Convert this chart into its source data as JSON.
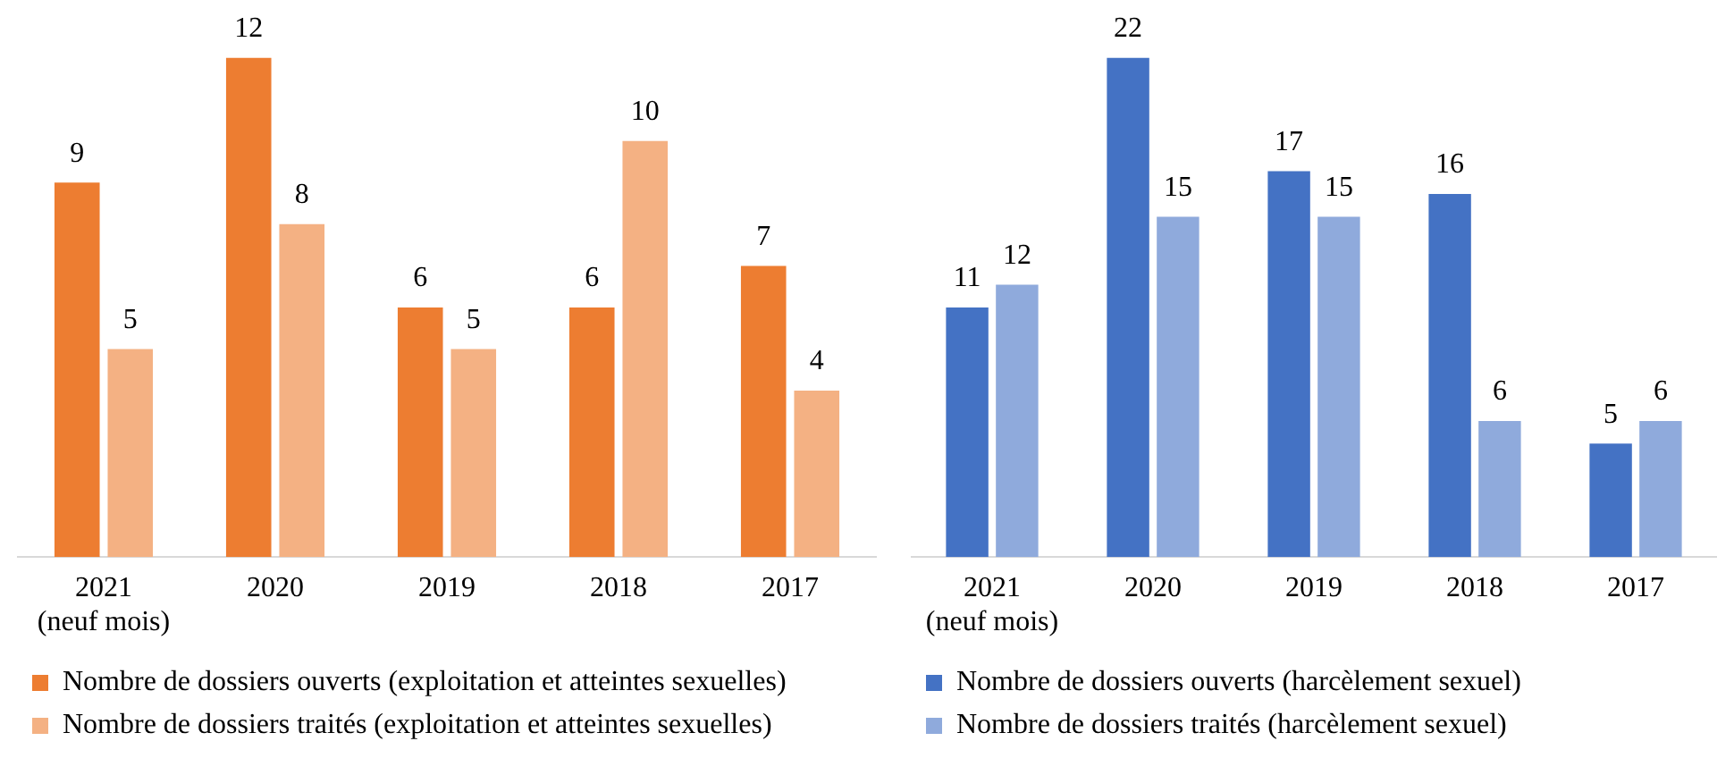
{
  "chart_data": [
    {
      "type": "bar",
      "categories": [
        "2021\n(neuf mois)",
        "2020",
        "2019",
        "2018",
        "2017"
      ],
      "series": [
        {
          "name": "Nombre de dossiers ouverts (exploitation et atteintes sexuelles)",
          "color": "#ed7d31",
          "values": [
            9,
            12,
            6,
            6,
            7
          ]
        },
        {
          "name": "Nombre de dossiers traités (exploitation et atteintes sexuelles)",
          "color": "#f4b183",
          "values": [
            5,
            8,
            5,
            10,
            4
          ]
        }
      ],
      "data_labels": true,
      "grid": false,
      "legend": "bottom"
    },
    {
      "type": "bar",
      "categories": [
        "2021\n(neuf mois)",
        "2020",
        "2019",
        "2018",
        "2017"
      ],
      "series": [
        {
          "name": "Nombre de dossiers ouverts (harcèlement sexuel)",
          "color": "#4472c4",
          "values": [
            11,
            22,
            17,
            16,
            5
          ]
        },
        {
          "name": "Nombre de dossiers traités (harcèlement sexuel)",
          "color": "#8faadc",
          "values": [
            12,
            15,
            15,
            6,
            6
          ]
        }
      ],
      "data_labels": true,
      "grid": false,
      "legend": "bottom"
    }
  ]
}
